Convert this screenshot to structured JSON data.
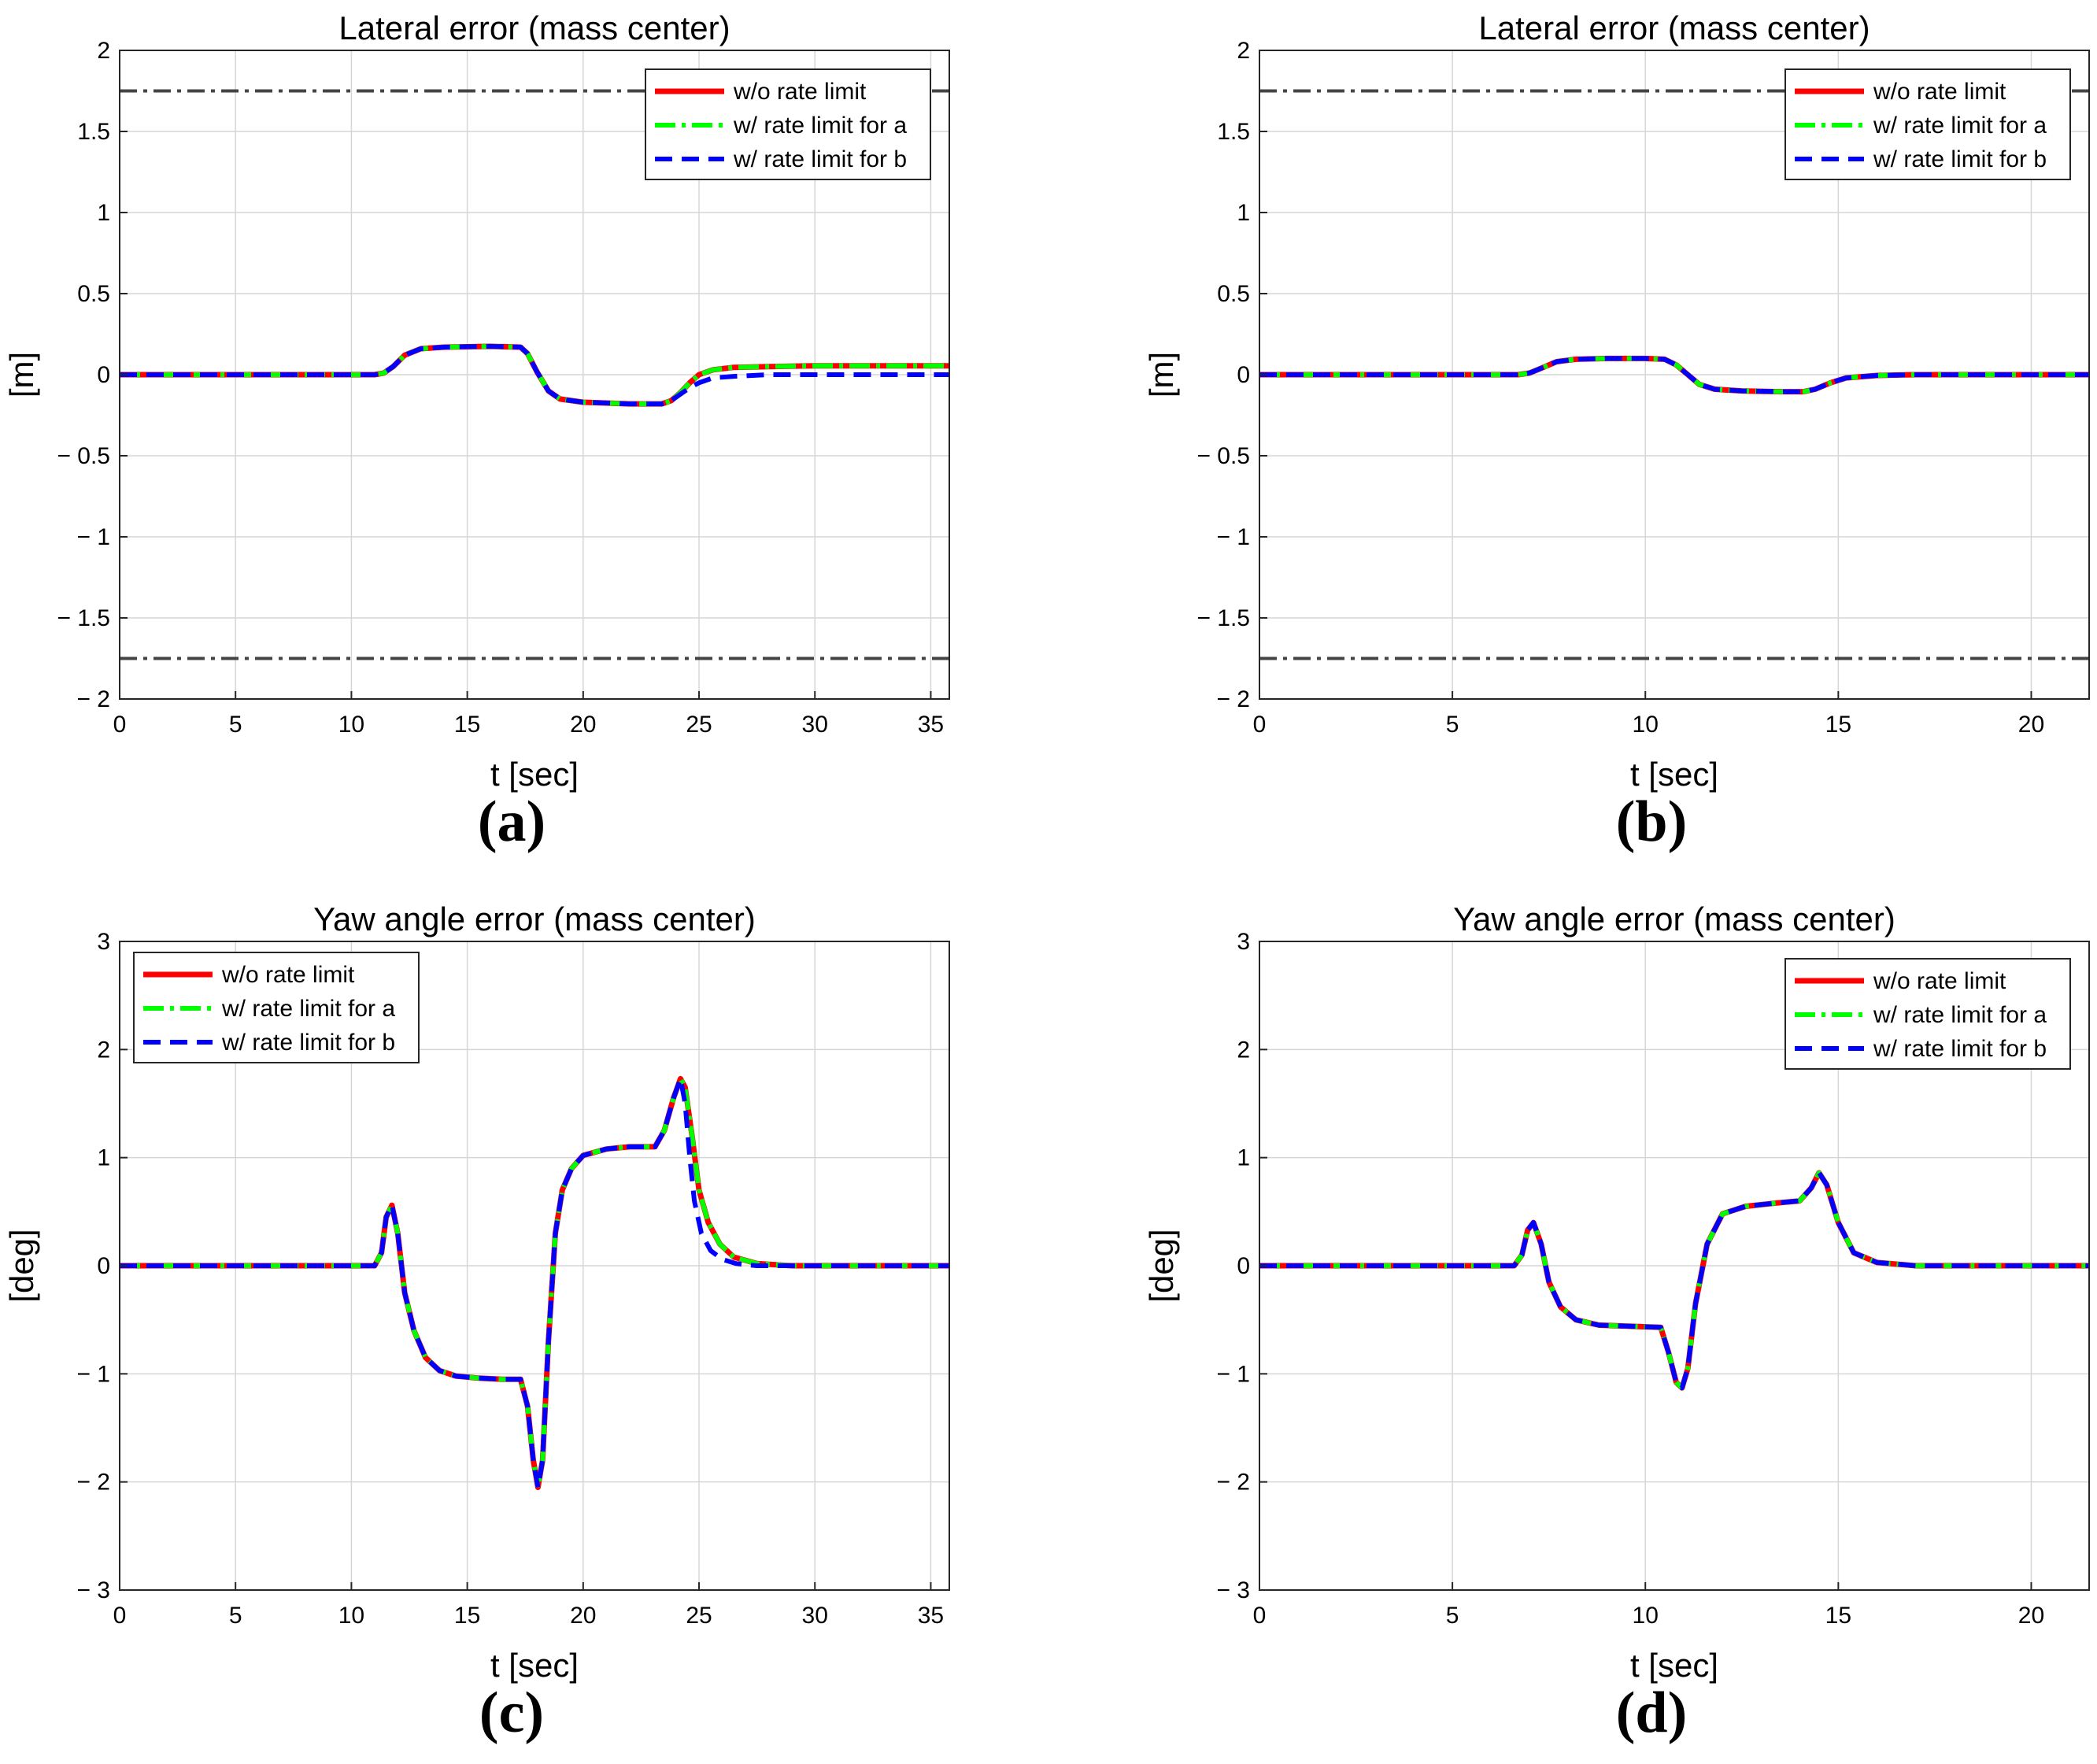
{
  "colors": {
    "red": "#ff0000",
    "green": "#00ff00",
    "blue": "#0000ff",
    "bound": "#444444",
    "grid": "#d6d6d6"
  },
  "chart_data": [
    {
      "type": "line",
      "panel": "(a)",
      "title": "Lateral error (mass center)",
      "xlabel": "t [sec]",
      "ylabel": "[m]",
      "xlim": [
        0,
        35.8
      ],
      "ylim": [
        -2,
        2
      ],
      "xticks": [
        0,
        5,
        10,
        15,
        20,
        25,
        30,
        35
      ],
      "yticks": [
        -2,
        -1.5,
        -1,
        -0.5,
        0,
        0.5,
        1,
        1.5,
        2
      ],
      "ytick_labels": [
        "− 2",
        "− 1.5",
        "− 1",
        "− 0.5",
        "0",
        "0.5",
        "1",
        "1.5",
        "2"
      ],
      "bounds": [
        1.75,
        -1.75
      ],
      "legend_position": "top-right",
      "series": [
        {
          "name": "w/o rate limit",
          "style": "solid",
          "color": "#ff0000",
          "x": [
            0,
            11,
            11.4,
            11.8,
            12.3,
            13,
            14,
            16,
            17.3,
            17.6,
            18,
            18.5,
            19,
            20,
            21,
            22,
            23.4,
            23.8,
            24.2,
            24.6,
            25,
            25.6,
            26.5,
            28,
            30,
            35.8
          ],
          "y": [
            0,
            0,
            0.01,
            0.05,
            0.12,
            0.16,
            0.17,
            0.175,
            0.17,
            0.13,
            0.02,
            -0.1,
            -0.15,
            -0.17,
            -0.175,
            -0.18,
            -0.18,
            -0.16,
            -0.11,
            -0.05,
            0.0,
            0.03,
            0.045,
            0.05,
            0.055,
            0.055
          ]
        },
        {
          "name": "w/ rate limit for a",
          "style": "dashdot",
          "color": "#00ff00",
          "x": [
            0,
            11,
            11.4,
            11.8,
            12.3,
            13,
            14,
            16,
            17.3,
            17.6,
            18,
            18.5,
            19,
            20,
            21,
            22,
            23.4,
            23.8,
            24.2,
            24.6,
            25,
            25.6,
            26.5,
            28,
            30,
            35.8
          ],
          "y": [
            0,
            0,
            0.01,
            0.05,
            0.12,
            0.16,
            0.17,
            0.175,
            0.17,
            0.13,
            0.02,
            -0.1,
            -0.15,
            -0.17,
            -0.175,
            -0.18,
            -0.18,
            -0.16,
            -0.11,
            -0.05,
            0.0,
            0.03,
            0.045,
            0.05,
            0.055,
            0.055
          ]
        },
        {
          "name": "w/ rate limit for b",
          "style": "dashed",
          "color": "#0000ff",
          "x": [
            0,
            11,
            11.4,
            11.8,
            12.3,
            13,
            14,
            16,
            17.3,
            17.6,
            18,
            18.5,
            19,
            20,
            21,
            22,
            23.4,
            23.8,
            24.2,
            24.6,
            25,
            25.6,
            26.5,
            28,
            30,
            35.8
          ],
          "y": [
            0,
            0,
            0.01,
            0.05,
            0.12,
            0.16,
            0.17,
            0.175,
            0.17,
            0.13,
            0.02,
            -0.1,
            -0.15,
            -0.17,
            -0.175,
            -0.18,
            -0.18,
            -0.16,
            -0.12,
            -0.08,
            -0.05,
            -0.02,
            -0.01,
            0,
            0,
            0
          ]
        }
      ]
    },
    {
      "type": "line",
      "panel": "(b)",
      "title": "Lateral error (mass center)",
      "xlabel": "t [sec]",
      "ylabel": "[m]",
      "xlim": [
        0,
        21.5
      ],
      "ylim": [
        -2,
        2
      ],
      "xticks": [
        0,
        5,
        10,
        15,
        20
      ],
      "yticks": [
        -2,
        -1.5,
        -1,
        -0.5,
        0,
        0.5,
        1,
        1.5,
        2
      ],
      "ytick_labels": [
        "− 2",
        "− 1.5",
        "− 1",
        "− 0.5",
        "0",
        "0.5",
        "1",
        "1.5",
        "2"
      ],
      "bounds": [
        1.75,
        -1.75
      ],
      "legend_position": "top-right",
      "series": [
        {
          "name": "w/o rate limit",
          "style": "solid",
          "color": "#ff0000",
          "x": [
            0,
            6.7,
            7,
            7.3,
            7.7,
            8.2,
            9,
            10,
            10.5,
            10.8,
            11.1,
            11.4,
            11.8,
            12.5,
            13.5,
            14.1,
            14.4,
            14.8,
            15.2,
            16,
            17,
            21.5
          ],
          "y": [
            0,
            0,
            0.01,
            0.04,
            0.08,
            0.095,
            0.1,
            0.1,
            0.095,
            0.06,
            0.0,
            -0.06,
            -0.09,
            -0.1,
            -0.105,
            -0.105,
            -0.09,
            -0.05,
            -0.02,
            -0.005,
            0,
            0
          ]
        },
        {
          "name": "w/ rate limit for a",
          "style": "dashdot",
          "color": "#00ff00",
          "x": [
            0,
            6.7,
            7,
            7.3,
            7.7,
            8.2,
            9,
            10,
            10.5,
            10.8,
            11.1,
            11.4,
            11.8,
            12.5,
            13.5,
            14.1,
            14.4,
            14.8,
            15.2,
            16,
            17,
            21.5
          ],
          "y": [
            0,
            0,
            0.01,
            0.04,
            0.08,
            0.095,
            0.1,
            0.1,
            0.095,
            0.06,
            0.0,
            -0.06,
            -0.09,
            -0.1,
            -0.105,
            -0.105,
            -0.09,
            -0.05,
            -0.02,
            -0.005,
            0,
            0
          ]
        },
        {
          "name": "w/ rate limit for b",
          "style": "dashed",
          "color": "#0000ff",
          "x": [
            0,
            6.7,
            7,
            7.3,
            7.7,
            8.2,
            9,
            10,
            10.5,
            10.8,
            11.1,
            11.4,
            11.8,
            12.5,
            13.5,
            14.1,
            14.4,
            14.8,
            15.2,
            16,
            17,
            21.5
          ],
          "y": [
            0,
            0,
            0.01,
            0.04,
            0.08,
            0.095,
            0.1,
            0.1,
            0.095,
            0.06,
            0.0,
            -0.06,
            -0.09,
            -0.1,
            -0.105,
            -0.105,
            -0.09,
            -0.05,
            -0.02,
            -0.005,
            0,
            0
          ]
        }
      ]
    },
    {
      "type": "line",
      "panel": "(c)",
      "title": "Yaw angle error (mass center)",
      "xlabel": "t [sec]",
      "ylabel": "[deg]",
      "xlim": [
        0,
        35.8
      ],
      "ylim": [
        -3,
        3
      ],
      "xticks": [
        0,
        5,
        10,
        15,
        20,
        25,
        30,
        35
      ],
      "yticks": [
        -3,
        -2,
        -1,
        0,
        1,
        2,
        3
      ],
      "ytick_labels": [
        "− 3",
        "− 2",
        "− 1",
        "0",
        "1",
        "2",
        "3"
      ],
      "bounds": [],
      "legend_position": "top-left",
      "series": [
        {
          "name": "w/o rate limit",
          "style": "solid",
          "color": "#ff0000",
          "x": [
            0,
            11,
            11.3,
            11.5,
            11.75,
            12,
            12.3,
            12.7,
            13.2,
            13.8,
            14.5,
            15.5,
            16.5,
            17.3,
            17.6,
            17.85,
            18.05,
            18.25,
            18.5,
            18.8,
            19.1,
            19.5,
            20,
            21,
            22,
            23.1,
            23.5,
            23.9,
            24.2,
            24.4,
            24.7,
            25,
            25.4,
            25.9,
            26.5,
            27.5,
            29,
            35.8
          ],
          "y": [
            0,
            0,
            0.12,
            0.45,
            0.56,
            0.3,
            -0.25,
            -0.6,
            -0.85,
            -0.97,
            -1.02,
            -1.04,
            -1.05,
            -1.05,
            -1.3,
            -1.8,
            -2.05,
            -1.8,
            -0.7,
            0.3,
            0.7,
            0.9,
            1.02,
            1.08,
            1.1,
            1.1,
            1.25,
            1.55,
            1.73,
            1.65,
            1.2,
            0.7,
            0.4,
            0.2,
            0.08,
            0.02,
            0,
            0
          ]
        },
        {
          "name": "w/ rate limit for a",
          "style": "dashdot",
          "color": "#00ff00",
          "x": [
            0,
            11,
            11.3,
            11.5,
            11.75,
            12,
            12.3,
            12.7,
            13.2,
            13.8,
            14.5,
            15.5,
            16.5,
            17.3,
            17.6,
            17.85,
            18.05,
            18.25,
            18.5,
            18.8,
            19.1,
            19.5,
            20,
            21,
            22,
            23.1,
            23.5,
            23.9,
            24.2,
            24.4,
            24.7,
            25,
            25.4,
            25.9,
            26.5,
            27.5,
            29,
            35.8
          ],
          "y": [
            0,
            0,
            0.12,
            0.45,
            0.56,
            0.3,
            -0.25,
            -0.6,
            -0.85,
            -0.97,
            -1.02,
            -1.04,
            -1.05,
            -1.05,
            -1.3,
            -1.8,
            -2.05,
            -1.8,
            -0.7,
            0.3,
            0.7,
            0.9,
            1.02,
            1.08,
            1.1,
            1.1,
            1.25,
            1.55,
            1.73,
            1.65,
            1.2,
            0.7,
            0.4,
            0.2,
            0.08,
            0.02,
            0,
            0
          ]
        },
        {
          "name": "w/ rate limit for b",
          "style": "dashed",
          "color": "#0000ff",
          "x": [
            0,
            11,
            11.3,
            11.5,
            11.75,
            12,
            12.3,
            12.7,
            13.2,
            13.8,
            14.5,
            15.5,
            16.5,
            17.3,
            17.6,
            17.85,
            18.05,
            18.25,
            18.5,
            18.8,
            19.1,
            19.5,
            20,
            21,
            22,
            23.1,
            23.5,
            23.9,
            24.2,
            24.4,
            24.6,
            24.8,
            25.1,
            25.5,
            26,
            26.6,
            27.5,
            29,
            35.8
          ],
          "y": [
            0,
            0,
            0.12,
            0.45,
            0.56,
            0.3,
            -0.25,
            -0.6,
            -0.85,
            -0.97,
            -1.02,
            -1.04,
            -1.05,
            -1.05,
            -1.3,
            -1.8,
            -2.05,
            -1.8,
            -0.7,
            0.3,
            0.7,
            0.9,
            1.02,
            1.08,
            1.1,
            1.1,
            1.25,
            1.55,
            1.73,
            1.5,
            1.0,
            0.6,
            0.3,
            0.14,
            0.06,
            0.02,
            0,
            0,
            0
          ]
        }
      ]
    },
    {
      "type": "line",
      "panel": "(d)",
      "title": "Yaw angle error (mass center)",
      "xlabel": "t [sec]",
      "ylabel": "[deg]",
      "xlim": [
        0,
        21.5
      ],
      "ylim": [
        -3,
        3
      ],
      "xticks": [
        0,
        5,
        10,
        15,
        20
      ],
      "yticks": [
        -3,
        -2,
        -1,
        0,
        1,
        2,
        3
      ],
      "ytick_labels": [
        "− 3",
        "− 2",
        "− 1",
        "0",
        "1",
        "2",
        "3"
      ],
      "bounds": [],
      "legend_position": "top-right",
      "series": [
        {
          "name": "w/o rate limit",
          "style": "solid",
          "color": "#ff0000",
          "x": [
            0,
            6.6,
            6.8,
            6.95,
            7.1,
            7.3,
            7.5,
            7.8,
            8.2,
            8.8,
            9.6,
            10.4,
            10.6,
            10.8,
            10.95,
            11.1,
            11.3,
            11.6,
            12,
            12.6,
            13.4,
            14,
            14.3,
            14.5,
            14.7,
            15,
            15.4,
            16,
            17,
            21.5
          ],
          "y": [
            0,
            0,
            0.1,
            0.33,
            0.4,
            0.2,
            -0.15,
            -0.38,
            -0.5,
            -0.55,
            -0.56,
            -0.57,
            -0.8,
            -1.08,
            -1.13,
            -0.95,
            -0.35,
            0.2,
            0.48,
            0.55,
            0.58,
            0.6,
            0.72,
            0.86,
            0.75,
            0.4,
            0.12,
            0.03,
            0,
            0
          ]
        },
        {
          "name": "w/ rate limit for a",
          "style": "dashdot",
          "color": "#00ff00",
          "x": [
            0,
            6.6,
            6.8,
            6.95,
            7.1,
            7.3,
            7.5,
            7.8,
            8.2,
            8.8,
            9.6,
            10.4,
            10.6,
            10.8,
            10.95,
            11.1,
            11.3,
            11.6,
            12,
            12.6,
            13.4,
            14,
            14.3,
            14.5,
            14.7,
            15,
            15.4,
            16,
            17,
            21.5
          ],
          "y": [
            0,
            0,
            0.1,
            0.33,
            0.4,
            0.2,
            -0.15,
            -0.38,
            -0.5,
            -0.55,
            -0.56,
            -0.57,
            -0.8,
            -1.08,
            -1.13,
            -0.95,
            -0.35,
            0.2,
            0.48,
            0.55,
            0.58,
            0.6,
            0.72,
            0.86,
            0.75,
            0.4,
            0.12,
            0.03,
            0,
            0
          ]
        },
        {
          "name": "w/ rate limit for b",
          "style": "dashed",
          "color": "#0000ff",
          "x": [
            0,
            6.6,
            6.8,
            6.95,
            7.1,
            7.3,
            7.5,
            7.8,
            8.2,
            8.8,
            9.6,
            10.4,
            10.6,
            10.8,
            10.95,
            11.1,
            11.3,
            11.6,
            12,
            12.6,
            13.4,
            14,
            14.3,
            14.5,
            14.7,
            15,
            15.4,
            16,
            17,
            21.5
          ],
          "y": [
            0,
            0,
            0.1,
            0.33,
            0.4,
            0.2,
            -0.15,
            -0.38,
            -0.5,
            -0.55,
            -0.56,
            -0.57,
            -0.8,
            -1.08,
            -1.13,
            -0.95,
            -0.35,
            0.2,
            0.48,
            0.55,
            0.58,
            0.6,
            0.72,
            0.86,
            0.75,
            0.4,
            0.12,
            0.03,
            0,
            0
          ]
        }
      ]
    }
  ]
}
